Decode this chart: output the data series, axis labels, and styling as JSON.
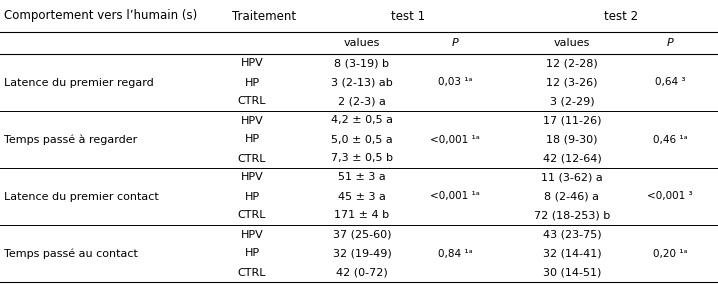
{
  "header1": "Comportement vers l’humain (s)",
  "header2": "Traitement",
  "header3": "test 1",
  "header4": "test 2",
  "subheader_values": "values",
  "subheader_P": "P",
  "rows": [
    {
      "group": "Latence du premier regard",
      "treatment": "HPV",
      "val1": "8 (3-19) b",
      "p1": "",
      "val2": "12 (2-28)",
      "p2": ""
    },
    {
      "group": "",
      "treatment": "HP",
      "val1": "3 (2-13) ab",
      "p1": "0,03 ¹ᵃ",
      "val2": "12 (3-26)",
      "p2": "0,64 ³"
    },
    {
      "group": "",
      "treatment": "CTRL",
      "val1": "2 (2-3) a",
      "p1": "",
      "val2": "3 (2-29)",
      "p2": ""
    },
    {
      "group": "Temps passé à regarder",
      "treatment": "HPV",
      "val1": "4,2 ± 0,5 a",
      "p1": "",
      "val2": "17 (11-26)",
      "p2": ""
    },
    {
      "group": "",
      "treatment": "HP",
      "val1": "5,0 ± 0,5 a",
      "p1": "<0,001 ¹ᵃ",
      "val2": "18 (9-30)",
      "p2": "0,46 ¹ᵃ"
    },
    {
      "group": "",
      "treatment": "CTRL",
      "val1": "7,3 ± 0,5 b",
      "p1": "",
      "val2": "42 (12-64)",
      "p2": ""
    },
    {
      "group": "Latence du premier contact",
      "treatment": "HPV",
      "val1": "51 ± 3 a",
      "p1": "",
      "val2": "11 (3-62) a",
      "p2": ""
    },
    {
      "group": "",
      "treatment": "HP",
      "val1": "45 ± 3 a",
      "p1": "<0,001 ¹ᵃ",
      "val2": "8 (2-46) a",
      "p2": "<0,001 ³"
    },
    {
      "group": "",
      "treatment": "CTRL",
      "val1": "171 ± 4 b",
      "p1": "",
      "val2": "72 (18-253) b",
      "p2": ""
    },
    {
      "group": "Temps passé au contact",
      "treatment": "HPV",
      "val1": "37 (25-60)",
      "p1": "",
      "val2": "43 (23-75)",
      "p2": ""
    },
    {
      "group": "",
      "treatment": "HP",
      "val1": "32 (19-49)",
      "p1": "0,84 ¹ᵃ",
      "val2": "32 (14-41)",
      "p2": "0,20 ¹ᵃ"
    },
    {
      "group": "",
      "treatment": "CTRL",
      "val1": "42 (0-72)",
      "p1": "",
      "val2": "30 (14-51)",
      "p2": ""
    }
  ],
  "group_starts": [
    0,
    3,
    6,
    9
  ],
  "bg_color": "#ffffff",
  "text_color": "#000000",
  "font_size": 8.0,
  "header_font_size": 8.5
}
